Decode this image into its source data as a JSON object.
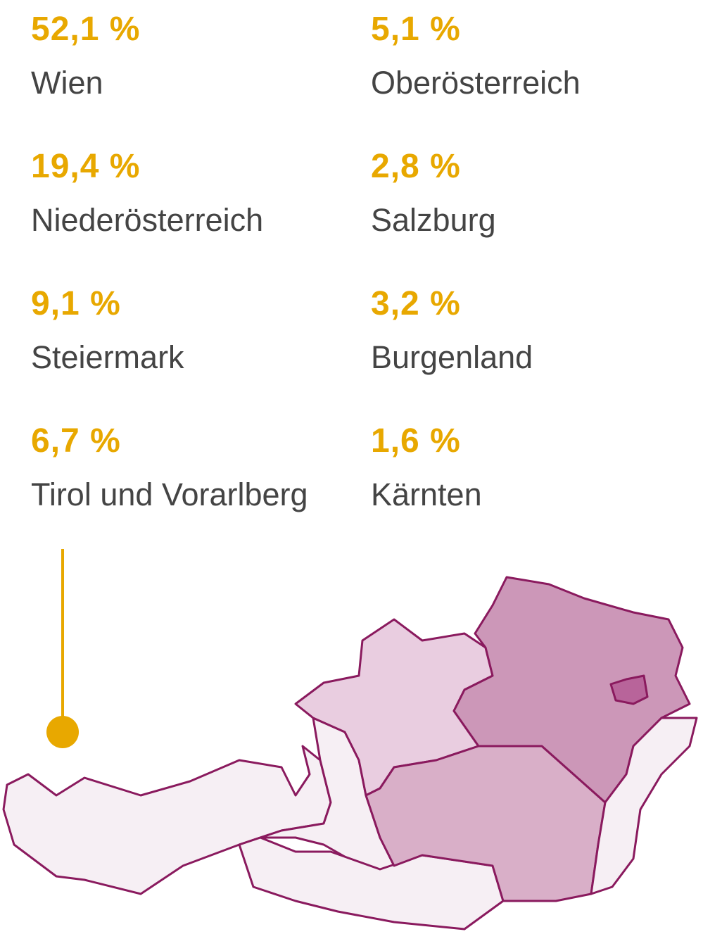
{
  "regions": [
    {
      "share": "52,1 %",
      "name": "Wien"
    },
    {
      "share": "5,1 %",
      "name": "Oberösterreich"
    },
    {
      "share": "19,4 %",
      "name": "Niederösterreich"
    },
    {
      "share": "2,8 %",
      "name": "Salzburg"
    },
    {
      "share": "9,1 %",
      "name": "Steiermark"
    },
    {
      "share": "3,2 %",
      "name": "Burgenland"
    },
    {
      "share": "6,7 %",
      "name": "Tirol und Vorarlberg"
    },
    {
      "share": "1,6 %",
      "name": "Kärnten"
    }
  ]
}
